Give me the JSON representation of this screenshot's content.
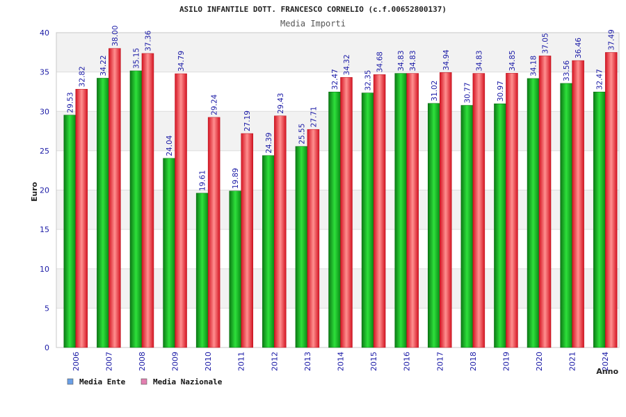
{
  "chart_data": {
    "type": "bar",
    "title": "ASILO INFANTILE DOTT. FRANCESCO CORNELIO (c.f.00652800137)",
    "subtitle": "Media Importi",
    "xlabel": "Anno",
    "ylabel": "Euro",
    "ylim": [
      0,
      40
    ],
    "yticks": [
      0,
      5,
      10,
      15,
      20,
      25,
      30,
      35,
      40
    ],
    "grid": true,
    "legend_position": "bottom-left",
    "categories": [
      "2006",
      "2007",
      "2008",
      "2009",
      "2010",
      "2011",
      "2012",
      "2013",
      "2014",
      "2015",
      "2016",
      "2017",
      "2018",
      "2019",
      "2020",
      "2021",
      "2024"
    ],
    "series": [
      {
        "name": "Media Ente",
        "legend_color": "#6a9fe6",
        "bar_color": "#0aa21a",
        "values": [
          29.53,
          34.22,
          35.15,
          24.04,
          19.61,
          19.89,
          24.39,
          25.55,
          32.47,
          32.35,
          34.83,
          31.02,
          30.77,
          30.97,
          34.18,
          33.56,
          32.47
        ],
        "labels": [
          "29.53",
          "34.22",
          "35.15",
          "24.04",
          "19.61",
          "19.89",
          "24.39",
          "25.55",
          "32.47",
          "32.35",
          "34.83",
          "31.02",
          "30.77",
          "30.97",
          "34.18",
          "33.56",
          "32.47"
        ]
      },
      {
        "name": "Media Nazionale",
        "legend_color": "#e27fb0",
        "bar_color": "#e3222e",
        "values": [
          32.82,
          38.0,
          37.36,
          34.79,
          29.24,
          27.19,
          29.43,
          27.71,
          34.32,
          34.68,
          34.83,
          34.94,
          34.83,
          34.85,
          37.05,
          36.46,
          37.49
        ],
        "labels": [
          "32.82",
          "38.00",
          "37.36",
          "34.79",
          "29.24",
          "27.19",
          "29.43",
          "27.71",
          "34.32",
          "34.68",
          "34.83",
          "34.94",
          "34.83",
          "34.85",
          "37.05",
          "36.46",
          "37.49"
        ]
      }
    ]
  },
  "colors": {
    "axis_text": "#1a1aa6",
    "title_text": "#222222",
    "subtitle_text": "#555555",
    "band_light": "#f2f2f2",
    "grid": "#dddddd",
    "frame": "#c8c8c8"
  }
}
